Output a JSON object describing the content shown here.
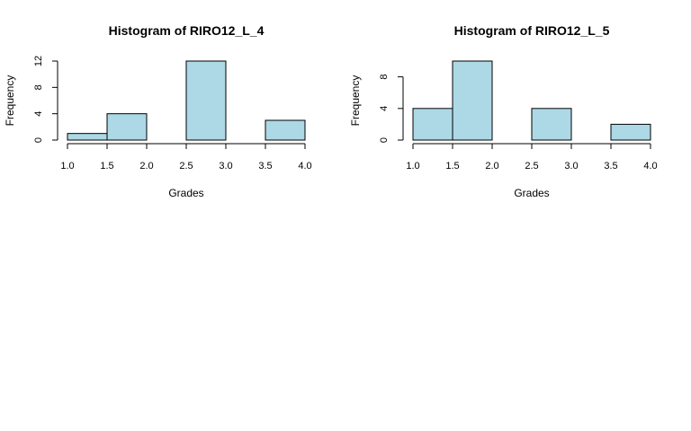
{
  "colors": {
    "bar_fill": "#add8e6",
    "bar_stroke": "#000000",
    "axis": "#000000",
    "background": "#ffffff"
  },
  "chart_data": [
    {
      "type": "bar",
      "title": "Histogram of RIRO12_L_4",
      "xlabel": "Grades",
      "ylabel": "Frequency",
      "bins": [
        [
          1.0,
          1.5
        ],
        [
          1.5,
          2.0
        ],
        [
          2.0,
          2.5
        ],
        [
          2.5,
          3.0
        ],
        [
          3.0,
          3.5
        ],
        [
          3.5,
          4.0
        ]
      ],
      "values": [
        1,
        4,
        0,
        12,
        0,
        3
      ],
      "xlim": [
        1.0,
        4.0
      ],
      "ylim": [
        0,
        12
      ],
      "xticks": [
        "1.0",
        "1.5",
        "2.0",
        "2.5",
        "3.0",
        "3.5",
        "4.0"
      ],
      "yticks": [
        "0",
        "4",
        "8",
        "12"
      ],
      "grid": false
    },
    {
      "type": "bar",
      "title": "Histogram of RIRO12_L_5",
      "xlabel": "Grades",
      "ylabel": "Frequency",
      "bins": [
        [
          1.0,
          1.5
        ],
        [
          1.5,
          2.0
        ],
        [
          2.0,
          2.5
        ],
        [
          2.5,
          3.0
        ],
        [
          3.0,
          3.5
        ],
        [
          3.5,
          4.0
        ]
      ],
      "values": [
        4,
        10,
        0,
        4,
        0,
        2
      ],
      "xlim": [
        1.0,
        4.0
      ],
      "ylim": [
        0,
        10
      ],
      "xticks": [
        "1.0",
        "1.5",
        "2.0",
        "2.5",
        "3.0",
        "3.5",
        "4.0"
      ],
      "yticks": [
        "0",
        "4",
        "8"
      ],
      "grid": false
    }
  ]
}
